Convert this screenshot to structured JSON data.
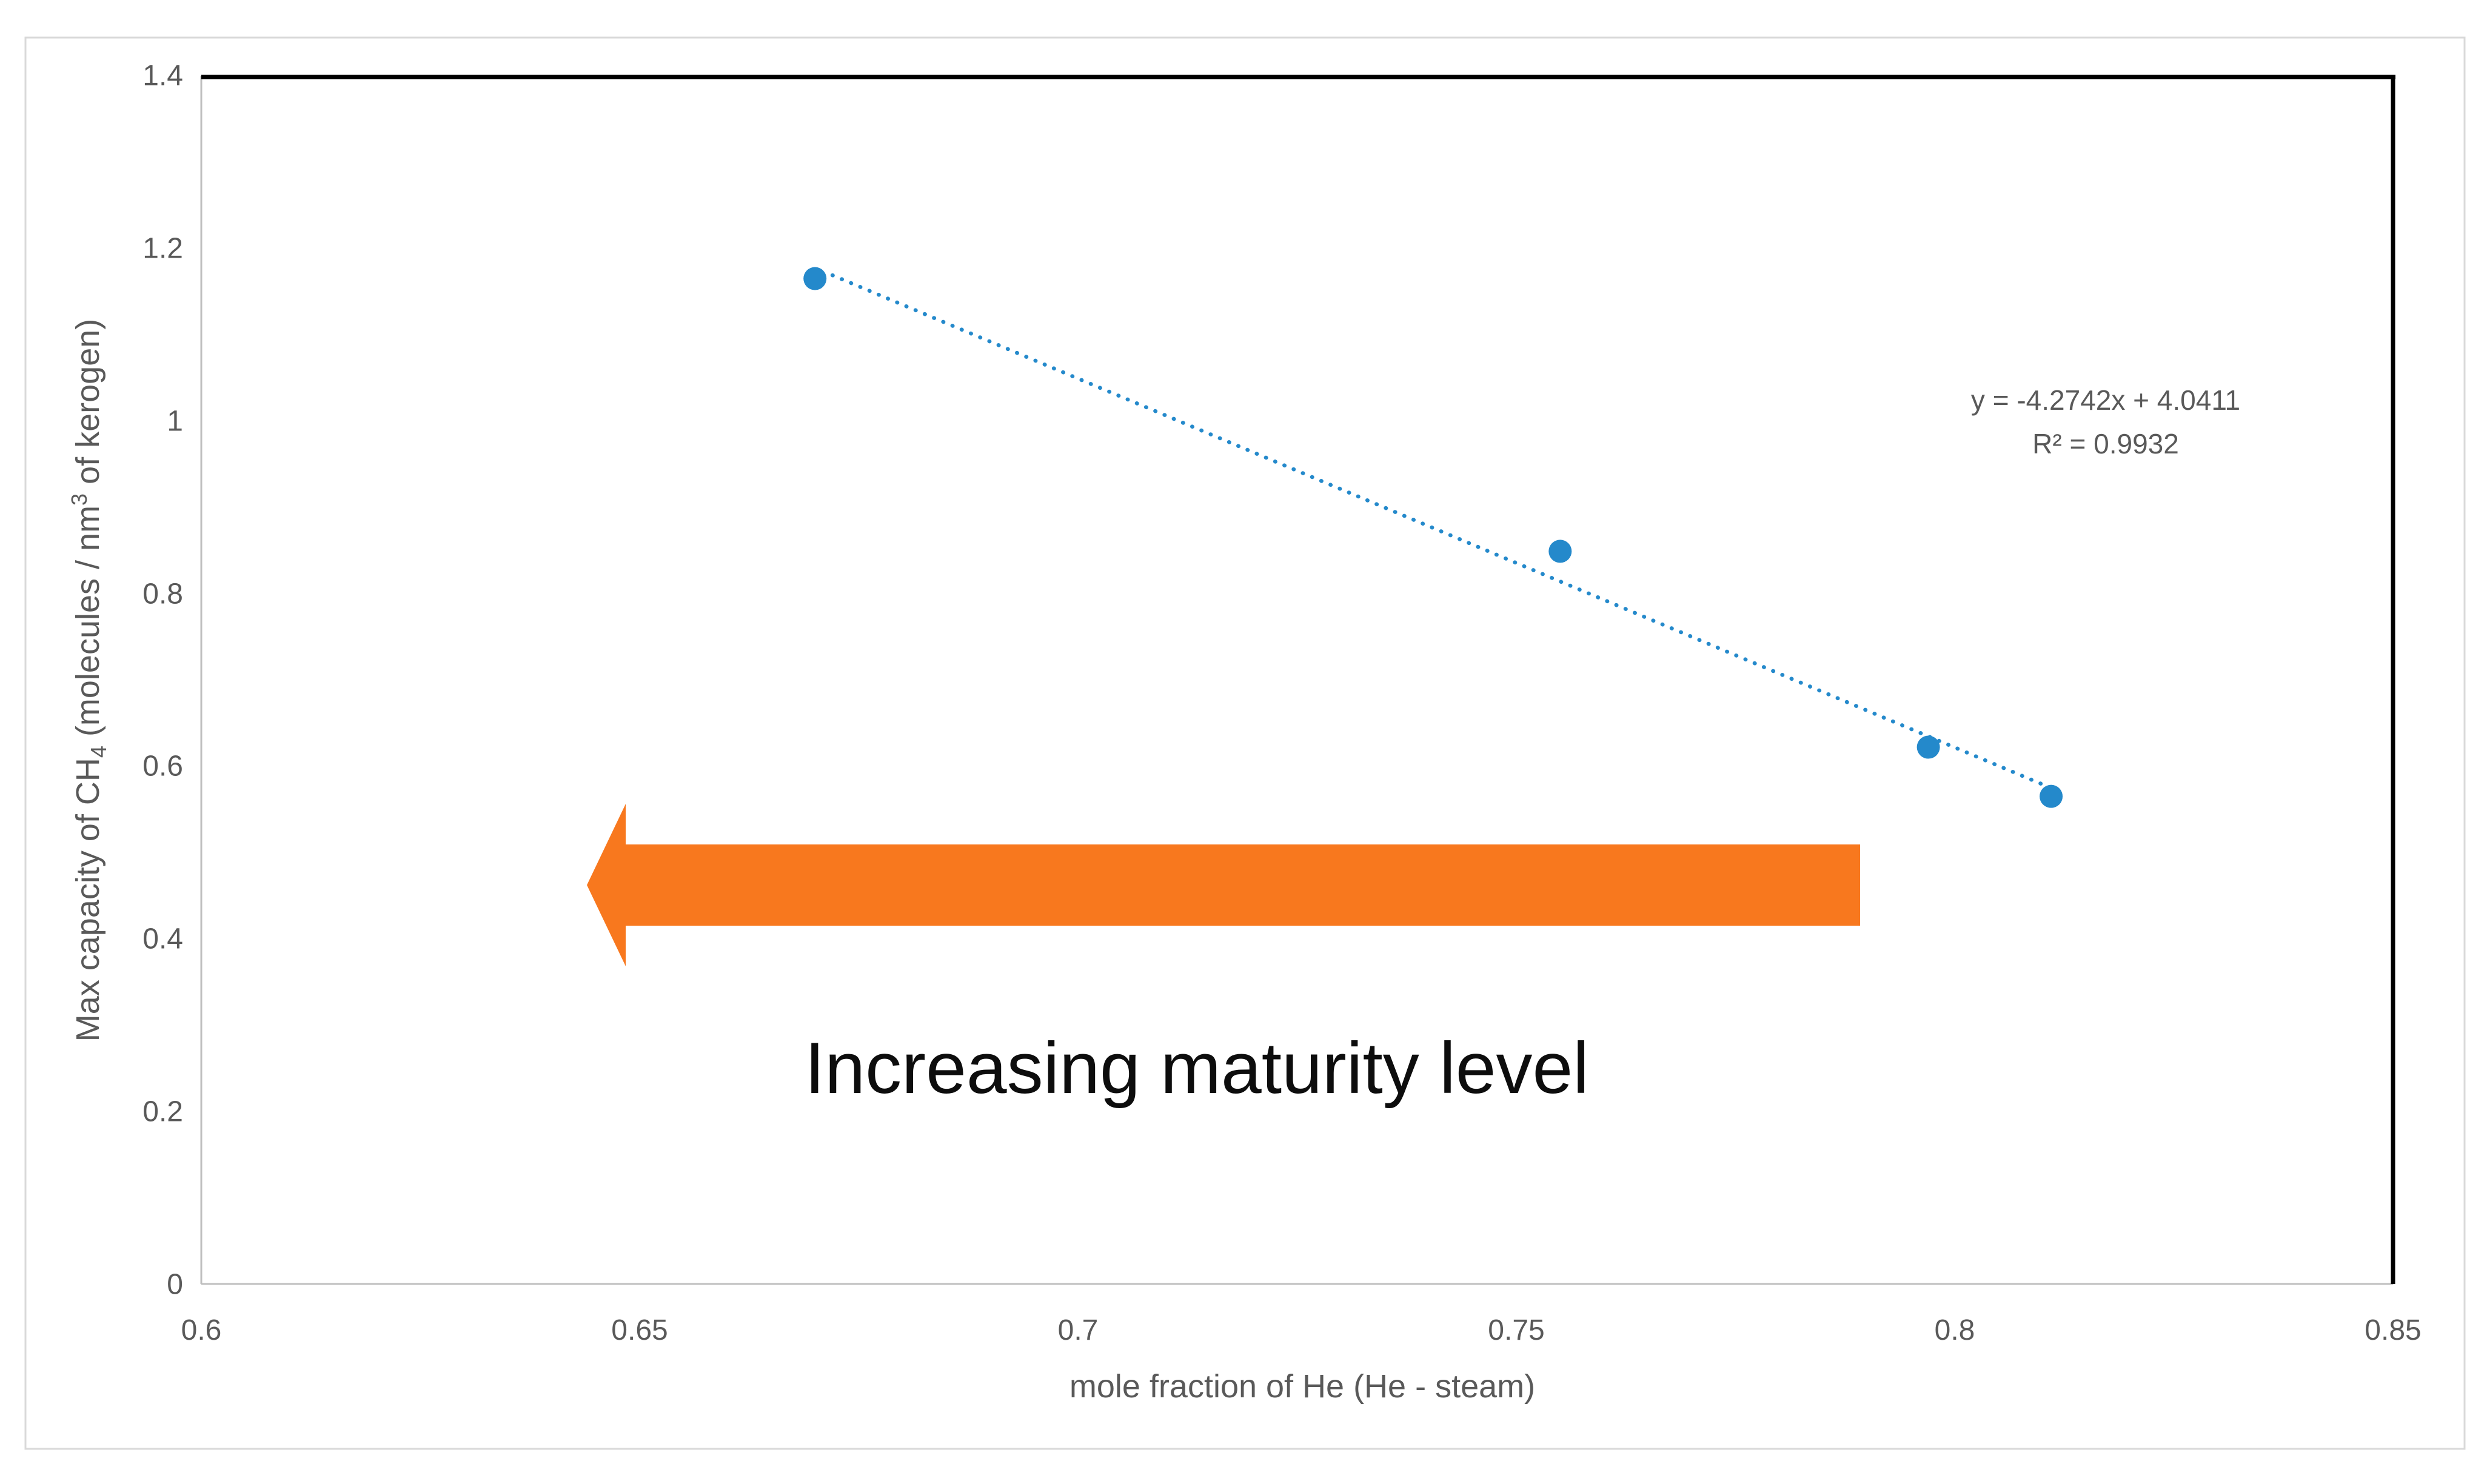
{
  "figure": {
    "background": "#FFFFFF",
    "border_color": "#D9D9D9"
  },
  "chart_data": {
    "type": "scatter",
    "title": "",
    "xlabel": "mole fraction of He (He - steam)",
    "ylabel": "Max capacity of CH4 (molecules / nm3 of kerogen)",
    "ylabel_parts": [
      "Max capacity of CH",
      "4",
      " (molecules / nm",
      "3",
      " of kerogen)"
    ],
    "x": [
      0.67,
      0.755,
      0.797,
      0.811
    ],
    "y": [
      1.165,
      0.849,
      0.622,
      0.565
    ],
    "xlim": [
      0.6,
      0.85
    ],
    "ylim": [
      0,
      1.4
    ],
    "x_ticks": [
      "0.6",
      "0.65",
      "0.7",
      "0.75",
      "0.8",
      "0.85"
    ],
    "y_ticks": [
      "1.4",
      "1.2",
      "1",
      "0.8",
      "0.6",
      "0.4",
      "0.2",
      "0"
    ],
    "grid": false,
    "legend": false,
    "series_color": "#2489CB",
    "text_color": "#595959",
    "trendline": {
      "style": "dotted",
      "equation_label": "y = -4.2742x + 4.0411",
      "r2_label": "R² = 0.9932",
      "slope": -4.2742,
      "intercept": 4.0411,
      "x_start": 0.672,
      "x_end": 0.8115
    },
    "annotation": {
      "text": "Increasing maturity level",
      "arrow_direction": "left",
      "arrow_color": "#F8781E",
      "text_color": "#0D0D0D"
    }
  }
}
